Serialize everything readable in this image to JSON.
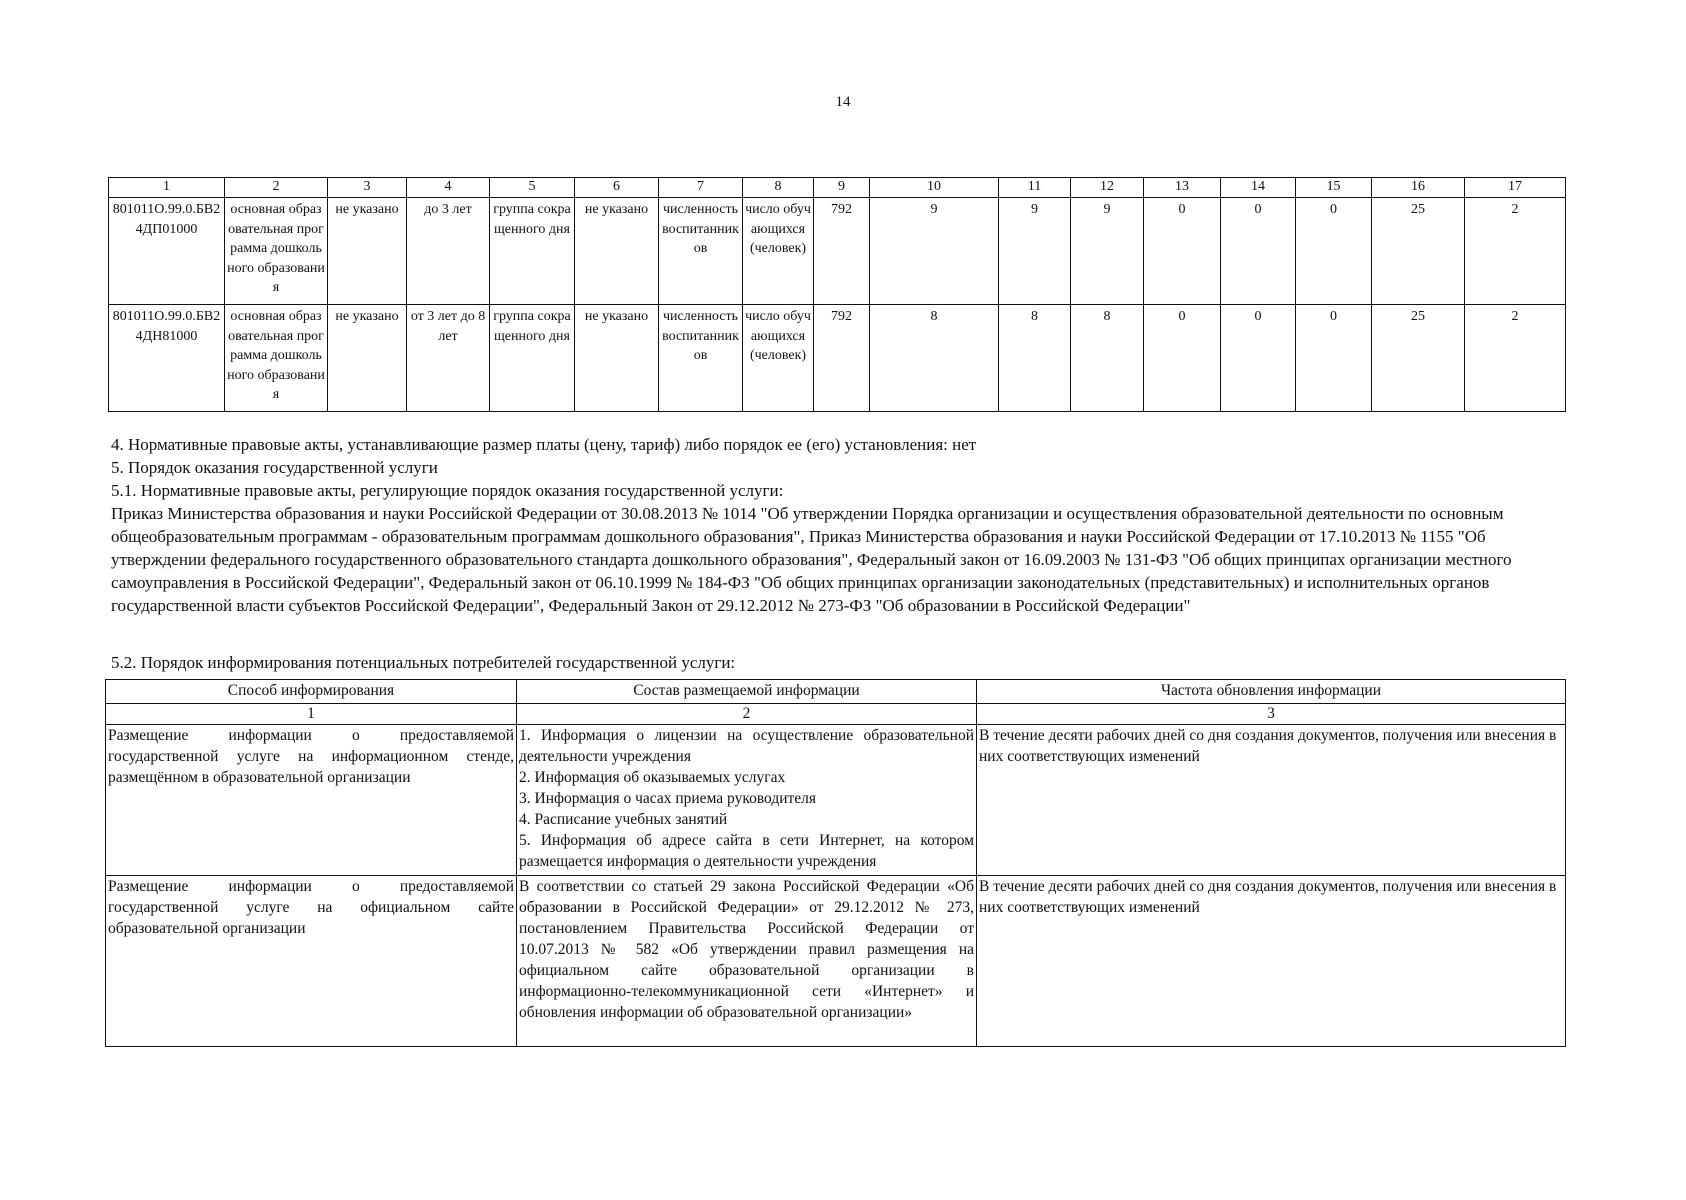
{
  "page_number": "14",
  "table1": {
    "header": [
      "1",
      "2",
      "3",
      "4",
      "5",
      "6",
      "7",
      "8",
      "9",
      "10",
      "11",
      "12",
      "13",
      "14",
      "15",
      "16",
      "17"
    ],
    "rows": [
      [
        "801011О.99.0.БВ24ДП01000",
        "основная образовательная программа дошкольного образования",
        "не указано",
        "до 3 лет",
        "группа сокращенного дня",
        "не указано",
        "численность воспитанников",
        "число обучающихся (человек)",
        "792",
        "9",
        "9",
        "9",
        "0",
        "0",
        "0",
        "25",
        "2"
      ],
      [
        "801011О.99.0.БВ24ДН81000",
        "основная образовательная программа дошкольного образования",
        "не указано",
        "от 3 лет до 8 лет",
        "группа сокращенного дня",
        "не указано",
        "численность воспитанников",
        "число обучающихся (человек)",
        "792",
        "8",
        "8",
        "8",
        "0",
        "0",
        "0",
        "25",
        "2"
      ]
    ]
  },
  "text": {
    "p4": "4. Нормативные правовые акты, устанавливающие размер платы (цену, тариф) либо порядок ее (его) установления: нет",
    "p5": "5. Порядок оказания государственной услуги",
    "p51": "5.1. Нормативные правовые акты, регулирующие порядок оказания государственной услуги:",
    "p51_body": "Приказ Министерства образования и науки Российской Федерации от 30.08.2013 № 1014 \"Об утверждении Порядка организации и осуществления образовательной деятельности по основным общеобразовательным программам - образовательным программам дошкольного образования\", Приказ Министерства образования и науки Российской Федерации от 17.10.2013 № 1155 \"Об утверждении федерального государственного образовательного стандарта дошкольного образования\", Федеральный закон от 16.09.2003 № 131-ФЗ \"Об общих принципах организации местного самоуправления в Российской Федерации\", Федеральный закон от 06.10.1999 № 184-ФЗ \"Об общих принципах организации законодательных (представительных) и исполнительных органов государственной власти субъектов Российской Федерации\", Федеральный Закон от 29.12.2012 № 273-ФЗ \"Об образовании в Российской Федерации\"",
    "p52": "5.2. Порядок информирования потенциальных потребителей государственной услуги:"
  },
  "table2": {
    "headers": [
      "Способ информирования",
      "Состав размещаемой информации",
      "Частота обновления информации"
    ],
    "numbers": [
      "1",
      "2",
      "3"
    ],
    "rows": [
      {
        "method": "Размещение информации о предоставляемой государственной услуге на информационном стенде, размещённом в образовательной организации",
        "content": [
          "1. Информация о лицензии на осуществление образовательной деятельности учреждения",
          "2. Информация об оказываемых услугах",
          "3. Информация о часах приема руководителя",
          "4. Расписание учебных занятий",
          "5. Информация об адресе сайта в сети Интернет, на котором размещается информация о деятельности учреждения"
        ],
        "frequency": "В течение десяти рабочих дней со дня создания документов, получения или внесения в них соответствующих изменений"
      },
      {
        "method": "Размещение информации о предоставляемой государственной услуге на официальном сайте образовательной организации",
        "content": [
          "В соответствии со статьей 29 закона Российской Федерации «Об образовании в Российской Федерации» от 29.12.2012 № 273, постановлением Правительства Российской Федерации от 10.07.2013 № 582 «Об утверждении правил размещения на официальном сайте образовательной организации в информационно-телекоммуникационной сети «Интернет» и обновления информации об образовательной организации»"
        ],
        "frequency": "В течение десяти рабочих дней со дня создания документов, получения или внесения в них соответствующих изменений"
      }
    ]
  }
}
